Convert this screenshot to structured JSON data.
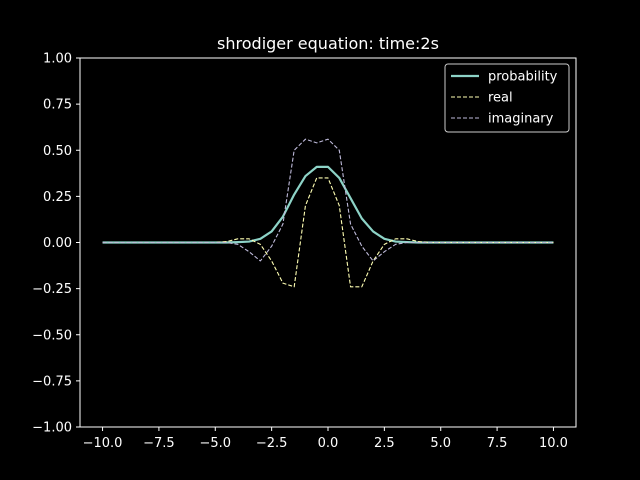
{
  "chart_data": {
    "type": "line",
    "title": "shrodiger equation: time:2s",
    "xlabel": "",
    "ylabel": "",
    "xlim": [
      -11,
      11
    ],
    "ylim": [
      -1.0,
      1.0
    ],
    "x_ticks": [
      -10,
      -7.5,
      -5,
      -2.5,
      0,
      2.5,
      5,
      7.5,
      10
    ],
    "x_tick_labels": [
      "−10.0",
      "−7.5",
      "−5.0",
      "−2.5",
      "0.0",
      "2.5",
      "5.0",
      "7.5",
      "10.0"
    ],
    "y_ticks": [
      1.0,
      0.75,
      0.5,
      0.25,
      0.0,
      -0.25,
      -0.5,
      -0.75,
      -1.0
    ],
    "y_tick_labels": [
      "1.00",
      "0.75",
      "0.50",
      "0.25",
      "0.00",
      "−0.25",
      "−0.50",
      "−0.75",
      "−1.00"
    ],
    "grid": false,
    "legend_position": "top-right",
    "x": [
      -10,
      -9.5,
      -9,
      -8.5,
      -8,
      -7.5,
      -7,
      -6.5,
      -6,
      -5.5,
      -5,
      -4.5,
      -4,
      -3.5,
      -3,
      -2.5,
      -2,
      -1.5,
      -1,
      -0.5,
      0,
      0.5,
      1,
      1.5,
      2,
      2.5,
      3,
      3.5,
      4,
      4.5,
      5,
      5.5,
      6,
      6.5,
      7,
      7.5,
      8,
      8.5,
      9,
      9.5,
      10
    ],
    "series": [
      {
        "name": "probability",
        "color": "#8dd3c7",
        "dash": "solid",
        "values": [
          0,
          0,
          0,
          0,
          0,
          0,
          0,
          0,
          0,
          0,
          0,
          0,
          0.002,
          0.005,
          0.02,
          0.06,
          0.14,
          0.26,
          0.36,
          0.41,
          0.41,
          0.35,
          0.24,
          0.13,
          0.06,
          0.02,
          0.005,
          0.002,
          0,
          0,
          0,
          0,
          0,
          0,
          0,
          0,
          0,
          0,
          0,
          0,
          0
        ]
      },
      {
        "name": "real",
        "color": "#ffffb3",
        "dash": "dashed",
        "values": [
          0,
          0,
          0,
          0,
          0,
          0,
          0,
          0,
          0,
          0,
          0,
          0.005,
          0.02,
          0.02,
          -0.01,
          -0.1,
          -0.22,
          -0.24,
          0.2,
          0.35,
          0.35,
          0.2,
          -0.24,
          -0.24,
          -0.1,
          -0.01,
          0.02,
          0.02,
          0.005,
          0,
          0,
          0,
          0,
          0,
          0,
          0,
          0,
          0,
          0,
          0,
          0
        ]
      },
      {
        "name": "imaginary",
        "color": "#bebada",
        "dash": "dashed",
        "values": [
          0,
          0,
          0,
          0,
          0,
          0,
          0,
          0,
          0,
          0,
          0,
          0,
          -0.01,
          -0.05,
          -0.1,
          -0.02,
          0.1,
          0.5,
          0.56,
          0.54,
          0.56,
          0.5,
          0.1,
          -0.02,
          -0.1,
          -0.05,
          -0.01,
          0,
          0,
          0,
          0,
          0,
          0,
          0,
          0,
          0,
          0,
          0,
          0,
          0,
          0
        ]
      }
    ]
  },
  "colors": {
    "background": "#000000",
    "axes": "#ffffff",
    "text": "#ffffff"
  }
}
